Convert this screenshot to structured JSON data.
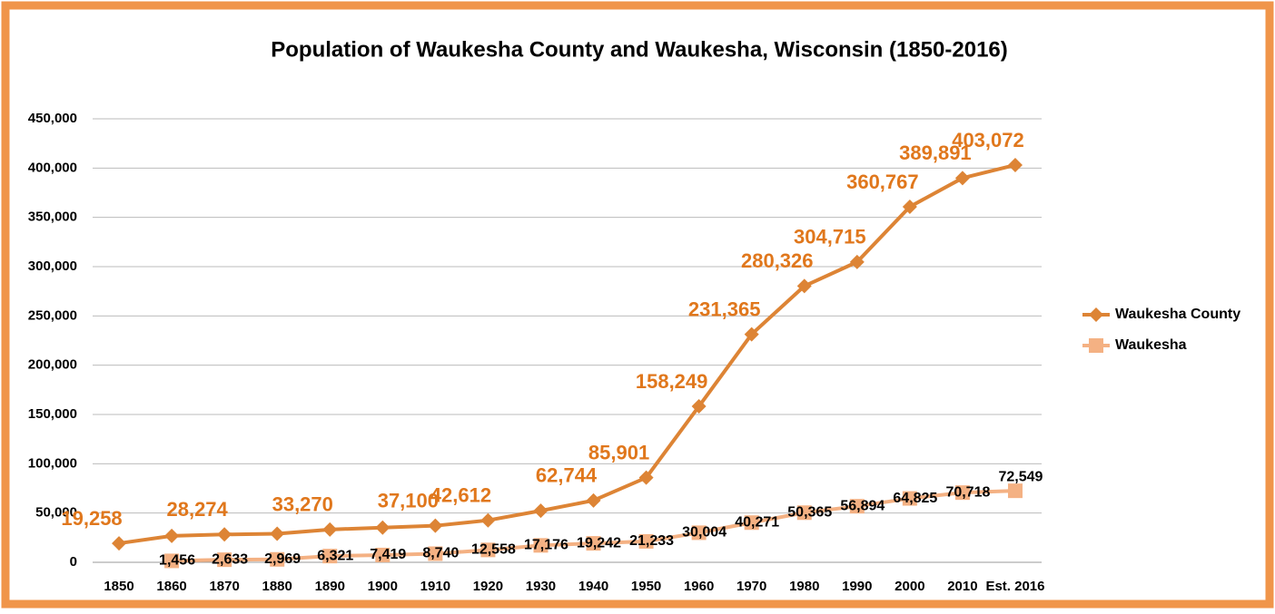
{
  "chart_data": {
    "type": "line",
    "title": "Population of Waukesha County and Waukesha, Wisconsin (1850-2016)",
    "categories": [
      "1850",
      "1860",
      "1870",
      "1880",
      "1890",
      "1900",
      "1910",
      "1920",
      "1930",
      "1940",
      "1950",
      "1960",
      "1970",
      "1980",
      "1990",
      "2000",
      "2010",
      "Est. 2016"
    ],
    "series": [
      {
        "name": "Waukesha County",
        "color": "#dd8435",
        "label_color": "#e0771c",
        "marker": "diamond",
        "values": [
          19258,
          26831,
          28274,
          28957,
          33270,
          35229,
          37100,
          42612,
          52358,
          62744,
          85901,
          158249,
          231365,
          280326,
          304715,
          360767,
          389891,
          403072
        ],
        "value_labels": [
          "19,258",
          null,
          "28,274",
          null,
          "33,270",
          null,
          "37,100",
          "42,612",
          null,
          "62,744",
          "85,901",
          "158,249",
          "231,365",
          "280,326",
          "304,715",
          "360,767",
          "389,891",
          "403,072"
        ]
      },
      {
        "name": "Waukesha",
        "color": "#f4b183",
        "label_color": "#000000",
        "marker": "square",
        "values": [
          null,
          1456,
          2633,
          2969,
          6321,
          7419,
          8740,
          12558,
          17176,
          19242,
          21233,
          30004,
          40271,
          50365,
          56894,
          64825,
          70718,
          72549
        ],
        "value_labels": [
          null,
          "1,456",
          "2,633",
          "2,969",
          "6,321",
          "7,419",
          "8,740",
          "12,558",
          "17,176",
          "19,242",
          "21,233",
          "30,004",
          "40,271",
          "50,365",
          "56,894",
          "64,825",
          "70,718",
          "72,549"
        ]
      }
    ],
    "ylim": [
      0,
      450000
    ],
    "yticks": [
      0,
      {
        "value": 50000,
        "label": "50,000"
      },
      {
        "value": 100000,
        "label": "100,000"
      },
      {
        "value": 150000,
        "label": "150,000"
      },
      {
        "value": 200000,
        "label": "200,000"
      },
      {
        "value": 250000,
        "label": "250,000"
      },
      {
        "value": 300000,
        "label": "300,000"
      },
      {
        "value": 350000,
        "label": "350,000"
      },
      {
        "value": 400000,
        "label": "400,000"
      },
      {
        "value": 450000,
        "label": "450,000"
      }
    ],
    "grid": true,
    "legend": "right"
  }
}
